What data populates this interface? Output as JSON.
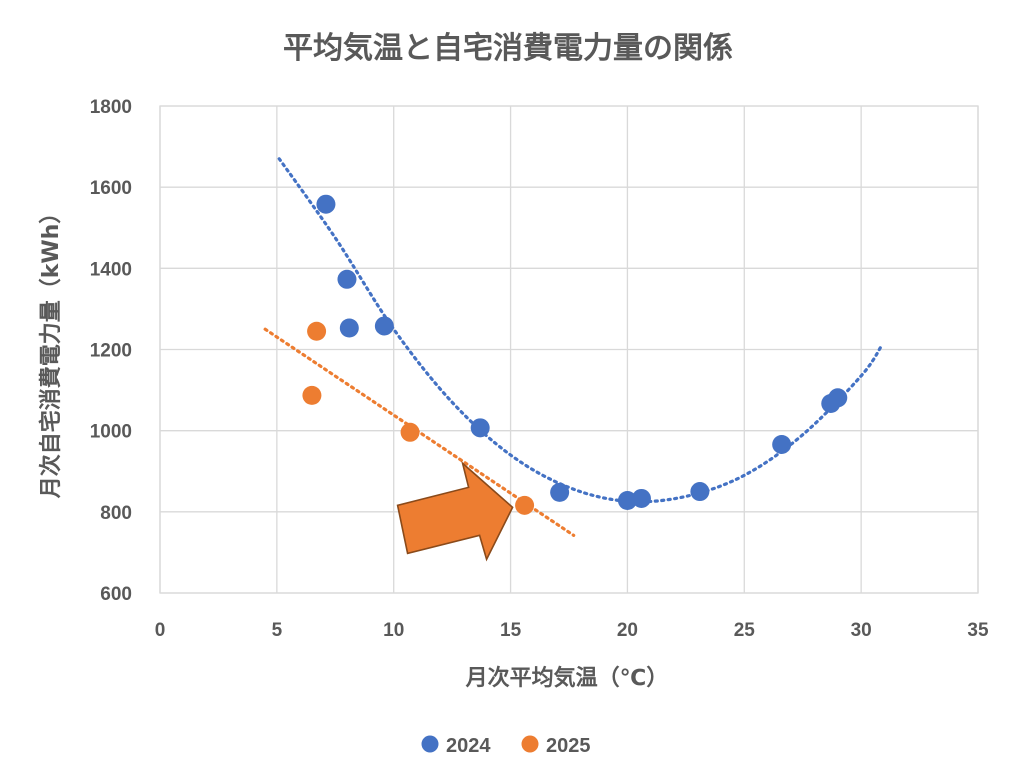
{
  "chart_data": {
    "type": "scatter",
    "title": "平均気温と自宅消費電力量の関係",
    "xlabel": "月次平均気温（℃）",
    "ylabel": "月次自宅消費電力量（kWh）",
    "xlim": [
      0,
      35
    ],
    "ylim": [
      600,
      1800
    ],
    "x_ticks": [
      "0",
      "5",
      "10",
      "15",
      "20",
      "25",
      "30",
      "35"
    ],
    "y_ticks": [
      "600",
      "800",
      "1000",
      "1200",
      "1400",
      "1600",
      "1800"
    ],
    "grid": true,
    "legend_position": "bottom",
    "series": [
      {
        "name": "2024",
        "color": "#4472C4",
        "points": [
          {
            "x": 7.1,
            "y": 1558
          },
          {
            "x": 8.0,
            "y": 1373
          },
          {
            "x": 8.1,
            "y": 1253
          },
          {
            "x": 9.6,
            "y": 1258
          },
          {
            "x": 13.7,
            "y": 1007
          },
          {
            "x": 17.1,
            "y": 848
          },
          {
            "x": 20.0,
            "y": 828
          },
          {
            "x": 20.6,
            "y": 833
          },
          {
            "x": 23.1,
            "y": 850
          },
          {
            "x": 26.6,
            "y": 966
          },
          {
            "x": 28.7,
            "y": 1067
          },
          {
            "x": 29.0,
            "y": 1081
          }
        ],
        "trendline": "polynomial",
        "trendline_points": [
          {
            "x": 5.1,
            "y": 1670
          },
          {
            "x": 7.5,
            "y": 1475
          },
          {
            "x": 10.0,
            "y": 1250
          },
          {
            "x": 12.5,
            "y": 1070
          },
          {
            "x": 15.0,
            "y": 940
          },
          {
            "x": 17.5,
            "y": 860
          },
          {
            "x": 20.0,
            "y": 826
          },
          {
            "x": 22.5,
            "y": 838
          },
          {
            "x": 25.0,
            "y": 890
          },
          {
            "x": 27.5,
            "y": 990
          },
          {
            "x": 30.0,
            "y": 1135
          },
          {
            "x": 30.9,
            "y": 1212
          }
        ]
      },
      {
        "name": "2025",
        "color": "#ED7D31",
        "points": [
          {
            "x": 6.7,
            "y": 1245
          },
          {
            "x": 6.5,
            "y": 1087
          },
          {
            "x": 10.7,
            "y": 996
          },
          {
            "x": 15.6,
            "y": 816
          }
        ],
        "trendline": "linear",
        "trendline_points": [
          {
            "x": 4.5,
            "y": 1250
          },
          {
            "x": 17.7,
            "y": 742
          }
        ]
      }
    ],
    "annotation": {
      "type": "arrow",
      "color": "#ED7D31",
      "target": {
        "x": 15.6,
        "y": 816
      }
    }
  }
}
